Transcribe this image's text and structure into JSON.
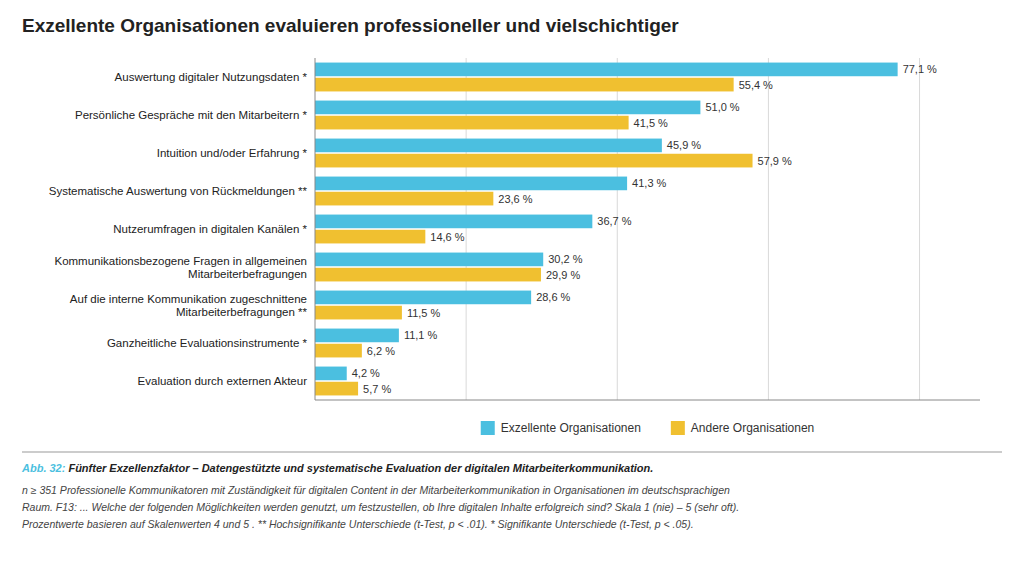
{
  "chart_data": {
    "type": "bar",
    "orientation": "horizontal",
    "title": "Exzellente Organisationen evaluieren professioneller und vielschichtiger",
    "categories": [
      "Auswertung digitaler Nutzungsdaten *",
      "Persönliche Gespräche mit den Mitarbeitern *",
      "Intuition und/oder Erfahrung *",
      "Systematische Auswertung von Rückmeldungen **",
      "Nutzerumfragen in digitalen Kanälen *",
      "Kommunikationsbezogene Fragen in allgemeinen\nMitarbeiterbefragungen",
      "Auf die interne Kommunikation zugeschnittene\nMitarbeiterbefragungen **",
      "Ganzheitliche Evaluationsinstrumente *",
      "Evaluation durch externen Akteur"
    ],
    "series": [
      {
        "name": "Exzellente Organisationen",
        "color": "#4BBFE0",
        "values": [
          77.1,
          51.0,
          45.9,
          41.3,
          36.7,
          30.2,
          28.6,
          11.1,
          4.2
        ],
        "value_labels": [
          "77,1 %",
          "51,0 %",
          "45,9 %",
          "41,3 %",
          "36,7 %",
          "30,2 %",
          "28,6 %",
          "11,1 %",
          "4,2 %"
        ]
      },
      {
        "name": "Andere Organisationen",
        "color": "#F0C030",
        "values": [
          55.4,
          41.5,
          57.9,
          23.6,
          14.6,
          29.9,
          11.5,
          6.2,
          5.7
        ],
        "value_labels": [
          "55,4 %",
          "41,5 %",
          "57,9 %",
          "23,6 %",
          "14,6 %",
          "29,9 %",
          "11,5 %",
          "6,2 %",
          "5,7 %"
        ]
      }
    ],
    "xlim": [
      0,
      88
    ],
    "xticks": [
      20,
      40,
      60,
      80
    ],
    "grid": true,
    "tick_labels": "y",
    "data_labels": true,
    "legend": "bottom",
    "annotations": [
      "Abb. 32: ",
      "Fünfter Exzellenzfaktor – Datengestützte und systematische Evaluation der digitalen Mitarbeiterkommunikation.",
      "n ≥ 351 Professionelle Kommunikatoren mit Zuständigkeit für digitalen Content in der Mitarbeiterkommunikation in Organisationen im deutschsprachigen",
      "Raum. F13: ... Welche der folgenden Möglichkeiten werden genutzt, um festzustellen, ob Ihre digitalen Inhalte erfolgreich sind? Skala 1 (nie) – 5 (sehr oft).",
      "Prozentwerte basieren auf Skalenwerten 4 und 5 . ** Hochsignifikante Unterschiede (t-Test, p < .01). * Signifikante Unterschiede (t-Test, p < .05)."
    ]
  }
}
